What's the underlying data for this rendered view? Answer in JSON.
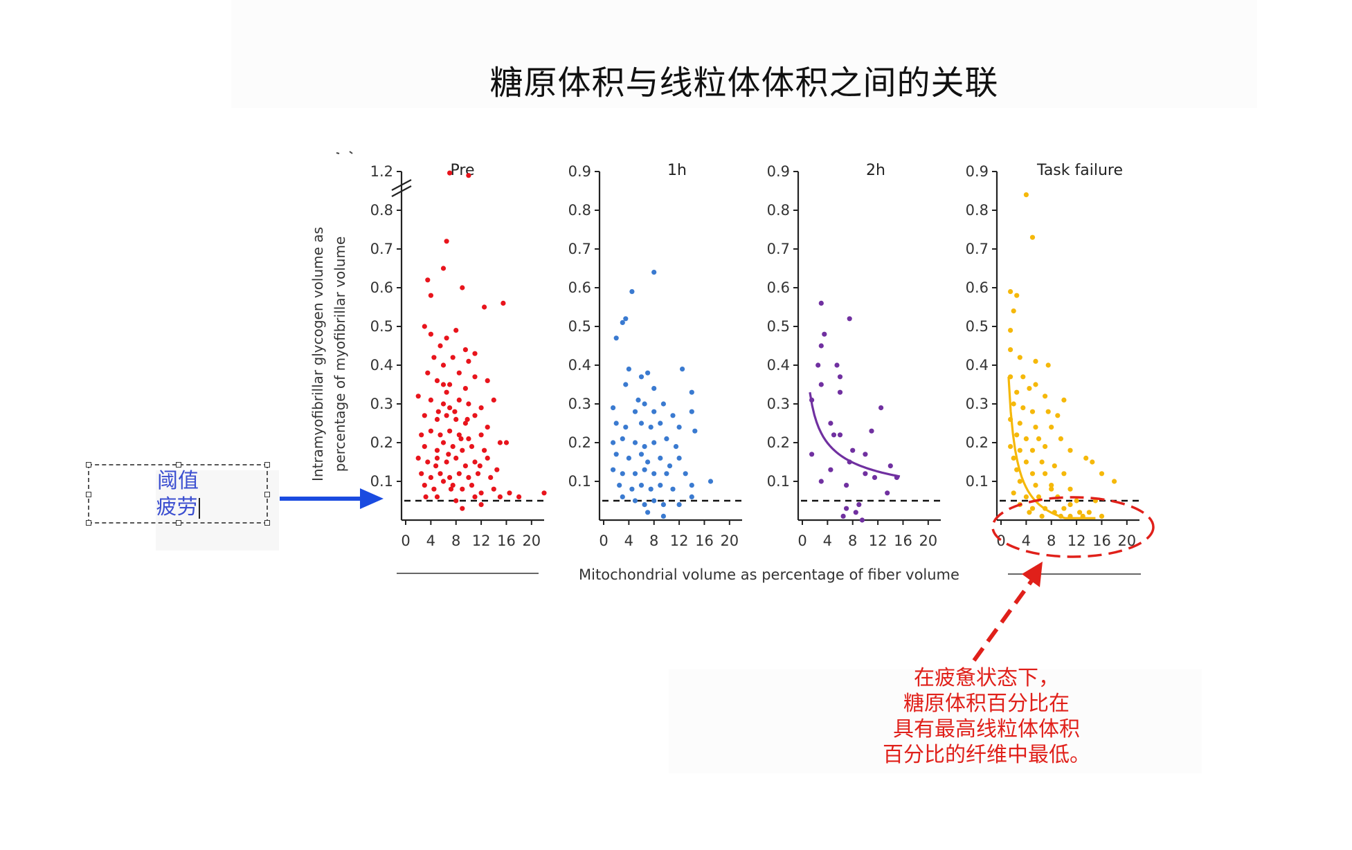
{
  "slide": {
    "title": "糖原体积与线粒体体积之间的关联"
  },
  "textbox": {
    "lines": [
      "阈值",
      "疲劳"
    ]
  },
  "annotation": {
    "lines": [
      "在疲惫状态下，",
      "糖原体积百分比在",
      "具有最高线粒体体积",
      "百分比的纤维中最低。"
    ]
  },
  "colors": {
    "pre": "#e8141c",
    "h1": "#3a7ad0",
    "h2": "#7030a0",
    "task_failure": "#f5b80a",
    "arrow_blue": "#1a4be0",
    "arrow_red": "#e0201a"
  },
  "chart_data": {
    "type": "scatter",
    "ylabel": "Intramyofibrillar glycogen volume as percentage of myofibrillar volume",
    "xlabel": "Mitochondrial volume as percentage of fiber volume",
    "threshold": 0.05,
    "panels": [
      {
        "name": "Pre",
        "ylim": [
          0,
          1.2
        ],
        "yticks": [
          "0.1",
          "0.2",
          "0.3",
          "0.4",
          "0.5",
          "0.6",
          "0.7",
          "0.8",
          "1.2"
        ],
        "xticks": [
          "0",
          "4",
          "8",
          "12",
          "16",
          "20"
        ],
        "axis_break": true,
        "color": "#e8141c",
        "points": [
          [
            7,
            1.1
          ],
          [
            10,
            1.05
          ],
          [
            6.5,
            0.72
          ],
          [
            6,
            0.65
          ],
          [
            3.5,
            0.62
          ],
          [
            9,
            0.6
          ],
          [
            4,
            0.58
          ],
          [
            12.5,
            0.55
          ],
          [
            15.5,
            0.56
          ],
          [
            3,
            0.5
          ],
          [
            4,
            0.48
          ],
          [
            5.5,
            0.45
          ],
          [
            6.5,
            0.47
          ],
          [
            8,
            0.49
          ],
          [
            9.5,
            0.44
          ],
          [
            4.5,
            0.42
          ],
          [
            6,
            0.4
          ],
          [
            7.5,
            0.42
          ],
          [
            10,
            0.41
          ],
          [
            11,
            0.43
          ],
          [
            3.5,
            0.38
          ],
          [
            5,
            0.36
          ],
          [
            7,
            0.35
          ],
          [
            8.5,
            0.38
          ],
          [
            9.5,
            0.34
          ],
          [
            11,
            0.37
          ],
          [
            13,
            0.36
          ],
          [
            2,
            0.32
          ],
          [
            4,
            0.31
          ],
          [
            6,
            0.3
          ],
          [
            6.5,
            0.33
          ],
          [
            7,
            0.29
          ],
          [
            8.5,
            0.31
          ],
          [
            10,
            0.3
          ],
          [
            12,
            0.29
          ],
          [
            14,
            0.31
          ],
          [
            3,
            0.27
          ],
          [
            5,
            0.26
          ],
          [
            6.5,
            0.27
          ],
          [
            8,
            0.26
          ],
          [
            9.5,
            0.25
          ],
          [
            11,
            0.27
          ],
          [
            13,
            0.24
          ],
          [
            2.5,
            0.22
          ],
          [
            4,
            0.23
          ],
          [
            5.5,
            0.22
          ],
          [
            7,
            0.23
          ],
          [
            8.5,
            0.22
          ],
          [
            10,
            0.21
          ],
          [
            12,
            0.22
          ],
          [
            15,
            0.2
          ],
          [
            3,
            0.19
          ],
          [
            5,
            0.18
          ],
          [
            6,
            0.2
          ],
          [
            7.5,
            0.19
          ],
          [
            9,
            0.18
          ],
          [
            10.5,
            0.19
          ],
          [
            12.5,
            0.18
          ],
          [
            16,
            0.2
          ],
          [
            2,
            0.16
          ],
          [
            3.5,
            0.15
          ],
          [
            5,
            0.16
          ],
          [
            6.5,
            0.15
          ],
          [
            8,
            0.16
          ],
          [
            9.5,
            0.14
          ],
          [
            11,
            0.15
          ],
          [
            13,
            0.16
          ],
          [
            14.5,
            0.13
          ],
          [
            2.5,
            0.12
          ],
          [
            4,
            0.11
          ],
          [
            5.5,
            0.12
          ],
          [
            7,
            0.11
          ],
          [
            8.5,
            0.12
          ],
          [
            10,
            0.11
          ],
          [
            11.5,
            0.12
          ],
          [
            13.5,
            0.11
          ],
          [
            3,
            0.09
          ],
          [
            4.5,
            0.08
          ],
          [
            6,
            0.1
          ],
          [
            7.5,
            0.09
          ],
          [
            9,
            0.08
          ],
          [
            10.5,
            0.09
          ],
          [
            12,
            0.07
          ],
          [
            14,
            0.08
          ],
          [
            16.5,
            0.07
          ],
          [
            5,
            0.06
          ],
          [
            8,
            0.05
          ],
          [
            11,
            0.06
          ],
          [
            15,
            0.06
          ],
          [
            18,
            0.06
          ],
          [
            22,
            0.07
          ],
          [
            9,
            0.03
          ],
          [
            12,
            0.04
          ],
          [
            6,
            0.35
          ],
          [
            7.8,
            0.28
          ],
          [
            5.2,
            0.28
          ],
          [
            8.8,
            0.21
          ],
          [
            4.8,
            0.14
          ],
          [
            9.8,
            0.26
          ],
          [
            6.8,
            0.17
          ],
          [
            11.8,
            0.14
          ],
          [
            7.2,
            0.08
          ],
          [
            3.2,
            0.06
          ]
        ]
      },
      {
        "name": "1h",
        "ylim": [
          0,
          0.9
        ],
        "yticks": [
          "0.1",
          "0.2",
          "0.3",
          "0.4",
          "0.5",
          "0.6",
          "0.7",
          "0.8",
          "0.9"
        ],
        "xticks": [
          "0",
          "4",
          "8",
          "12",
          "16",
          "20"
        ],
        "color": "#3a7ad0",
        "points": [
          [
            8,
            0.64
          ],
          [
            4.5,
            0.59
          ],
          [
            3,
            0.51
          ],
          [
            3.5,
            0.52
          ],
          [
            2,
            0.47
          ],
          [
            4,
            0.39
          ],
          [
            6,
            0.37
          ],
          [
            7,
            0.38
          ],
          [
            12.5,
            0.39
          ],
          [
            3.5,
            0.35
          ],
          [
            8,
            0.34
          ],
          [
            14,
            0.33
          ],
          [
            5.5,
            0.31
          ],
          [
            6.5,
            0.3
          ],
          [
            9.5,
            0.3
          ],
          [
            1.5,
            0.29
          ],
          [
            5,
            0.28
          ],
          [
            8,
            0.28
          ],
          [
            11,
            0.27
          ],
          [
            14,
            0.28
          ],
          [
            2,
            0.25
          ],
          [
            3.5,
            0.24
          ],
          [
            6,
            0.25
          ],
          [
            7.5,
            0.24
          ],
          [
            9,
            0.25
          ],
          [
            12,
            0.24
          ],
          [
            14.5,
            0.23
          ],
          [
            1.5,
            0.2
          ],
          [
            3,
            0.21
          ],
          [
            5,
            0.2
          ],
          [
            6.5,
            0.19
          ],
          [
            8,
            0.2
          ],
          [
            10,
            0.21
          ],
          [
            2,
            0.17
          ],
          [
            4,
            0.16
          ],
          [
            6,
            0.17
          ],
          [
            7,
            0.15
          ],
          [
            9,
            0.16
          ],
          [
            12,
            0.16
          ],
          [
            1.5,
            0.13
          ],
          [
            3,
            0.12
          ],
          [
            5,
            0.12
          ],
          [
            6.5,
            0.13
          ],
          [
            8,
            0.12
          ],
          [
            10,
            0.12
          ],
          [
            13,
            0.12
          ],
          [
            17,
            0.1
          ],
          [
            2.5,
            0.09
          ],
          [
            4.5,
            0.08
          ],
          [
            6,
            0.09
          ],
          [
            7.5,
            0.08
          ],
          [
            9,
            0.09
          ],
          [
            11,
            0.08
          ],
          [
            14,
            0.09
          ],
          [
            3,
            0.06
          ],
          [
            5,
            0.05
          ],
          [
            6.5,
            0.04
          ],
          [
            8,
            0.05
          ],
          [
            9.5,
            0.04
          ],
          [
            12,
            0.04
          ],
          [
            7,
            0.02
          ],
          [
            9.5,
            0.01
          ],
          [
            14,
            0.06
          ],
          [
            10.5,
            0.14
          ],
          [
            11.5,
            0.19
          ]
        ]
      },
      {
        "name": "2h",
        "ylim": [
          0,
          0.9
        ],
        "yticks": [
          "0.1",
          "0.2",
          "0.3",
          "0.4",
          "0.5",
          "0.6",
          "0.7",
          "0.8",
          "0.9"
        ],
        "xticks": [
          "0",
          "4",
          "8",
          "12",
          "16",
          "20"
        ],
        "color": "#7030a0",
        "trend": true,
        "points": [
          [
            3,
            0.56
          ],
          [
            7.5,
            0.52
          ],
          [
            3.5,
            0.48
          ],
          [
            3,
            0.45
          ],
          [
            2.5,
            0.4
          ],
          [
            5.5,
            0.4
          ],
          [
            6,
            0.37
          ],
          [
            3,
            0.35
          ],
          [
            1.5,
            0.31
          ],
          [
            6,
            0.33
          ],
          [
            12.5,
            0.29
          ],
          [
            4.5,
            0.25
          ],
          [
            5,
            0.22
          ],
          [
            6,
            0.22
          ],
          [
            11,
            0.23
          ],
          [
            1.5,
            0.17
          ],
          [
            8,
            0.18
          ],
          [
            10,
            0.17
          ],
          [
            7.5,
            0.15
          ],
          [
            14,
            0.14
          ],
          [
            4.5,
            0.13
          ],
          [
            10,
            0.12
          ],
          [
            11.5,
            0.11
          ],
          [
            15,
            0.11
          ],
          [
            3,
            0.1
          ],
          [
            7,
            0.09
          ],
          [
            13.5,
            0.07
          ],
          [
            9,
            0.04
          ],
          [
            7,
            0.03
          ],
          [
            8.5,
            0.02
          ],
          [
            6.5,
            0.01
          ],
          [
            9.5,
            0.0
          ]
        ]
      },
      {
        "name": "Task failure",
        "ylim": [
          0,
          0.9
        ],
        "yticks": [
          "0.1",
          "0.2",
          "0.3",
          "0.4",
          "0.5",
          "0.6",
          "0.7",
          "0.8",
          "0.9"
        ],
        "xticks": [
          "0",
          "4",
          "8",
          "12",
          "16",
          "20"
        ],
        "color": "#f5b80a",
        "trend": true,
        "points": [
          [
            4,
            0.84
          ],
          [
            5,
            0.73
          ],
          [
            1.5,
            0.59
          ],
          [
            2.5,
            0.58
          ],
          [
            2,
            0.54
          ],
          [
            1.5,
            0.49
          ],
          [
            5.5,
            0.41
          ],
          [
            7.5,
            0.4
          ],
          [
            1.5,
            0.37
          ],
          [
            3.5,
            0.37
          ],
          [
            5.5,
            0.35
          ],
          [
            2.5,
            0.33
          ],
          [
            4.5,
            0.34
          ],
          [
            7,
            0.32
          ],
          [
            10,
            0.31
          ],
          [
            2,
            0.3
          ],
          [
            3.5,
            0.29
          ],
          [
            5,
            0.28
          ],
          [
            7.5,
            0.28
          ],
          [
            9,
            0.27
          ],
          [
            1.5,
            0.26
          ],
          [
            3,
            0.25
          ],
          [
            5.5,
            0.24
          ],
          [
            8,
            0.24
          ],
          [
            2.5,
            0.22
          ],
          [
            4,
            0.21
          ],
          [
            6,
            0.21
          ],
          [
            9.5,
            0.21
          ],
          [
            1.5,
            0.19
          ],
          [
            3,
            0.18
          ],
          [
            5,
            0.18
          ],
          [
            7,
            0.19
          ],
          [
            11,
            0.18
          ],
          [
            2,
            0.16
          ],
          [
            4,
            0.15
          ],
          [
            6.5,
            0.15
          ],
          [
            8.5,
            0.14
          ],
          [
            13.5,
            0.16
          ],
          [
            14.5,
            0.15
          ],
          [
            2.5,
            0.13
          ],
          [
            5,
            0.12
          ],
          [
            7,
            0.12
          ],
          [
            10,
            0.12
          ],
          [
            16,
            0.12
          ],
          [
            3,
            0.1
          ],
          [
            5.5,
            0.09
          ],
          [
            8,
            0.09
          ],
          [
            11,
            0.08
          ],
          [
            18,
            0.1
          ],
          [
            2,
            0.07
          ],
          [
            4,
            0.06
          ],
          [
            6,
            0.06
          ],
          [
            9,
            0.06
          ],
          [
            12,
            0.05
          ],
          [
            15,
            0.05
          ],
          [
            3,
            0.04
          ],
          [
            5,
            0.03
          ],
          [
            7,
            0.03
          ],
          [
            8.5,
            0.02
          ],
          [
            10,
            0.03
          ],
          [
            12.5,
            0.02
          ],
          [
            14,
            0.02
          ],
          [
            16,
            0.01
          ],
          [
            4.5,
            0.02
          ],
          [
            6.5,
            0.01
          ],
          [
            9.5,
            0.01
          ],
          [
            11,
            0.01
          ],
          [
            13,
            0.01
          ],
          [
            1.5,
            0.44
          ],
          [
            3,
            0.42
          ],
          [
            8,
            0.08
          ],
          [
            11,
            0.04
          ]
        ]
      }
    ]
  }
}
